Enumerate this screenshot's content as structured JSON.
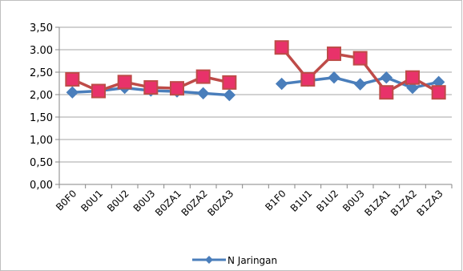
{
  "chart_data": {
    "type": "line",
    "categories": [
      "B0F0",
      "B0U1",
      "B0U2",
      "B0U3",
      "B0ZA1",
      "B0ZA2",
      "B0ZA3",
      "",
      "B1F0",
      "B1U1",
      "B1U2",
      "B0U3",
      "B1ZA1",
      "B1ZA2",
      "B1ZA3"
    ],
    "y_tick_labels": [
      "0,00",
      "0,50",
      "1,00",
      "1,50",
      "2,00",
      "2,50",
      "3.00",
      "3,50"
    ],
    "ylim": [
      0,
      3.5
    ],
    "y_step": 0.5,
    "grid": true,
    "legend_position": "bottom",
    "series": [
      {
        "name": "N Jaringan",
        "color": "#4A7EBB",
        "marker": "diamond",
        "values": [
          2.05,
          2.08,
          2.15,
          2.09,
          2.07,
          2.03,
          1.99,
          null,
          2.24,
          2.31,
          2.38,
          2.23,
          2.38,
          2.15,
          2.28
        ]
      },
      {
        "name": "",
        "color": "#BE4B48",
        "marker_color": "#E8326A",
        "marker": "square",
        "values": [
          2.34,
          2.08,
          2.28,
          2.16,
          2.14,
          2.4,
          2.27,
          null,
          3.05,
          2.34,
          2.91,
          2.81,
          2.05,
          2.38,
          2.05
        ]
      }
    ]
  }
}
